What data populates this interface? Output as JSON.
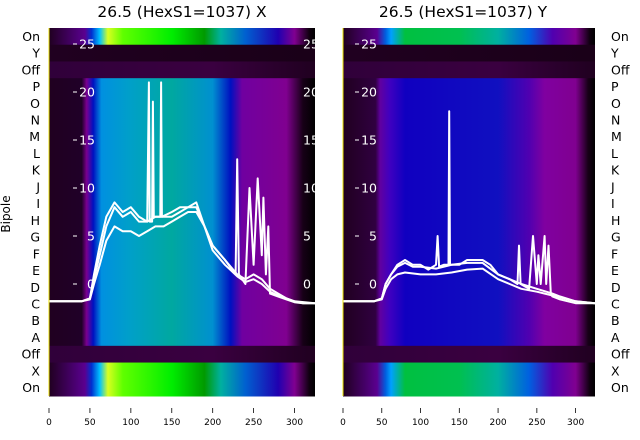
{
  "chart_data": [
    {
      "type": "heatmap",
      "title": "26.5 (HexS1=1037) X",
      "ylabel": "Bipole",
      "row_labels": [
        "On",
        "Y",
        "Off",
        "P",
        "O",
        "N",
        "M",
        "L",
        "K",
        "J",
        "I",
        "H",
        "G",
        "F",
        "E",
        "D",
        "C",
        "B",
        "A",
        "Off",
        "X",
        "On"
      ],
      "xticks": [
        0,
        50,
        100,
        150,
        200,
        250,
        300
      ],
      "xlim": [
        0,
        325
      ],
      "inner_yticks": [
        0,
        5,
        10,
        15,
        20,
        25
      ],
      "inner_ylim": [
        -3.2,
        26.5
      ],
      "row_palette": {
        "on": [
          [
            0,
            "#200020"
          ],
          [
            44,
            "#5a0090"
          ],
          [
            52,
            "#0030d0"
          ],
          [
            62,
            "#00c0ff"
          ],
          [
            72,
            "#d8ff20"
          ],
          [
            90,
            "#60ff00"
          ],
          [
            150,
            "#00ee00"
          ],
          [
            190,
            "#009a00"
          ],
          [
            210,
            "#00b0a0"
          ],
          [
            240,
            "#0060d0"
          ],
          [
            280,
            "#2000b0"
          ],
          [
            300,
            "#800090"
          ],
          [
            318,
            "#100010"
          ],
          [
            325,
            "#000000"
          ]
        ],
        "off": [
          [
            0,
            "#30003a"
          ],
          [
            200,
            "#3a0040"
          ],
          [
            325,
            "#200020"
          ]
        ],
        "y": [
          [
            0,
            "#200020"
          ],
          [
            325,
            "#1a0018"
          ]
        ],
        "letter": [
          [
            0,
            "#200020"
          ],
          [
            40,
            "#200028"
          ],
          [
            46,
            "#7a0090"
          ],
          [
            54,
            "#0010c0"
          ],
          [
            64,
            "#0090e0"
          ],
          [
            100,
            "#00a0c8"
          ],
          [
            150,
            "#00a8a0"
          ],
          [
            200,
            "#0090d0"
          ],
          [
            222,
            "#0010c0"
          ],
          [
            236,
            "#7000a0"
          ],
          [
            290,
            "#800090"
          ],
          [
            310,
            "#180018"
          ],
          [
            325,
            "#000000"
          ]
        ]
      },
      "traces": [
        {
          "x": [
            0,
            40,
            50,
            55,
            62,
            70,
            80,
            90,
            100,
            110,
            120,
            122,
            123,
            126,
            127,
            128,
            136,
            137,
            138,
            150,
            160,
            170,
            180,
            190,
            200,
            215,
            228,
            230,
            232,
            240,
            245,
            250,
            255,
            260,
            262,
            265,
            268,
            270,
            280,
            290,
            300,
            310,
            325
          ],
          "y": [
            -1.8,
            -1.8,
            -1.5,
            1,
            4,
            7,
            8.5,
            7.5,
            8,
            7,
            6.5,
            21,
            6.5,
            6.5,
            19,
            7,
            7,
            21,
            7,
            7.5,
            8,
            8,
            8.5,
            6,
            4,
            2.5,
            1,
            13,
            1,
            0,
            10,
            2,
            11,
            3,
            9,
            1,
            6,
            -1,
            -1.3,
            -1.6,
            -1.9,
            -2,
            -2
          ]
        },
        {
          "x": [
            0,
            40,
            50,
            55,
            62,
            70,
            80,
            90,
            100,
            110,
            120,
            130,
            140,
            150,
            160,
            170,
            180,
            190,
            200,
            215,
            230,
            240,
            250,
            260,
            270,
            280,
            290,
            300,
            310,
            325
          ],
          "y": [
            -1.8,
            -1.8,
            -1.5,
            0.5,
            3,
            6,
            8,
            7,
            7.5,
            6.5,
            6.5,
            7,
            7,
            7,
            7.5,
            8,
            8,
            6,
            4,
            2.5,
            1,
            0.5,
            1,
            0.5,
            -0.5,
            -1,
            -1.5,
            -1.8,
            -2,
            -2
          ]
        },
        {
          "x": [
            0,
            40,
            50,
            55,
            62,
            70,
            80,
            90,
            100,
            110,
            120,
            130,
            140,
            150,
            160,
            170,
            180,
            190,
            200,
            215,
            230,
            240,
            250,
            260,
            270,
            280,
            300,
            325
          ],
          "y": [
            -1.8,
            -1.8,
            -1.6,
            0,
            2,
            4.5,
            6,
            5.5,
            5.5,
            5,
            5.5,
            6,
            6,
            6.5,
            7,
            7.5,
            7.5,
            6,
            3.5,
            2,
            0.8,
            0.2,
            0.5,
            0,
            -0.8,
            -1.2,
            -1.8,
            -2
          ]
        }
      ]
    },
    {
      "type": "heatmap",
      "title": "26.5 (HexS1=1037) Y",
      "row_labels": [
        "On",
        "Y",
        "Off",
        "P",
        "O",
        "N",
        "M",
        "L",
        "K",
        "J",
        "I",
        "H",
        "G",
        "F",
        "E",
        "D",
        "C",
        "B",
        "A",
        "Off",
        "X",
        "On"
      ],
      "xticks": [
        0,
        50,
        100,
        150,
        200,
        250,
        300
      ],
      "xlim": [
        0,
        325
      ],
      "inner_yticks": [
        0,
        5,
        10,
        15,
        20,
        25
      ],
      "inner_ylim": [
        -3.2,
        26.5
      ],
      "row_palette": {
        "on": [
          [
            0,
            "#200020"
          ],
          [
            44,
            "#5a0090"
          ],
          [
            55,
            "#0060e0"
          ],
          [
            62,
            "#00a0ff"
          ],
          [
            80,
            "#00c040"
          ],
          [
            150,
            "#00c050"
          ],
          [
            200,
            "#00b0a0"
          ],
          [
            240,
            "#0060e0"
          ],
          [
            270,
            "#5000b0"
          ],
          [
            300,
            "#800090"
          ],
          [
            318,
            "#100010"
          ],
          [
            325,
            "#000000"
          ]
        ],
        "off": [
          [
            0,
            "#30003a"
          ],
          [
            200,
            "#3a0040"
          ],
          [
            325,
            "#200020"
          ]
        ],
        "y": [
          [
            0,
            "#200020"
          ],
          [
            325,
            "#1a0018"
          ]
        ],
        "letter": [
          [
            0,
            "#200020"
          ],
          [
            42,
            "#300040"
          ],
          [
            48,
            "#6000a0"
          ],
          [
            60,
            "#4000c0"
          ],
          [
            80,
            "#1000c0"
          ],
          [
            200,
            "#1010c0"
          ],
          [
            240,
            "#5000b0"
          ],
          [
            260,
            "#8000a0"
          ],
          [
            300,
            "#800090"
          ],
          [
            316,
            "#180018"
          ],
          [
            325,
            "#000000"
          ]
        ]
      },
      "traces": [
        {
          "x": [
            0,
            40,
            50,
            55,
            62,
            70,
            80,
            90,
            100,
            110,
            120,
            122,
            124,
            130,
            136,
            137,
            138,
            150,
            160,
            170,
            180,
            190,
            200,
            215,
            225,
            227,
            229,
            240,
            245,
            250,
            252,
            255,
            260,
            262,
            265,
            268,
            270,
            280,
            300,
            325
          ],
          "y": [
            -1.8,
            -1.8,
            -1.5,
            0,
            1,
            2,
            2.5,
            2,
            2,
            1.5,
            2,
            5,
            1.8,
            2,
            2,
            18,
            2,
            2,
            2.5,
            2.5,
            2.5,
            2,
            1,
            0.5,
            0,
            4,
            0,
            -0.5,
            5,
            0,
            3,
            0,
            5,
            0,
            4,
            -1,
            -1.3,
            -1.6,
            -2,
            -2
          ]
        },
        {
          "x": [
            0,
            40,
            50,
            55,
            62,
            70,
            80,
            90,
            100,
            120,
            140,
            160,
            180,
            200,
            215,
            230,
            250,
            270,
            280,
            300,
            325
          ],
          "y": [
            -1.8,
            -1.8,
            -1.5,
            0,
            1,
            1.8,
            2.2,
            1.8,
            1.8,
            1.6,
            2,
            2.2,
            2.2,
            1,
            0.5,
            0,
            -0.5,
            -1,
            -1.3,
            -1.8,
            -2
          ]
        },
        {
          "x": [
            0,
            40,
            50,
            55,
            62,
            70,
            80,
            100,
            120,
            140,
            160,
            180,
            200,
            215,
            230,
            250,
            270,
            300,
            325
          ],
          "y": [
            -1.8,
            -1.8,
            -1.6,
            -0.5,
            0.5,
            1,
            1.2,
            1,
            1,
            1.2,
            1.5,
            1.6,
            0.5,
            0,
            -0.5,
            -0.8,
            -1.2,
            -1.8,
            -2
          ]
        }
      ]
    }
  ]
}
